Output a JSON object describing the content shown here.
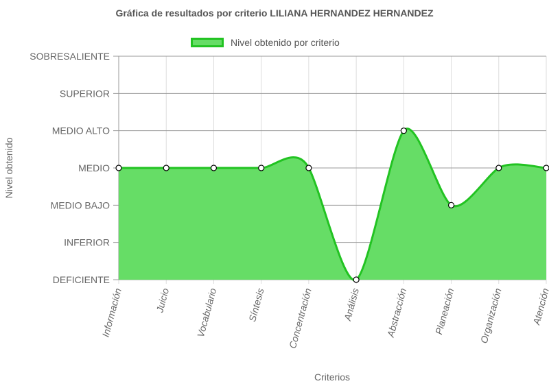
{
  "title": "Gráfica de resultados por criterio LILIANA HERNANDEZ HERNANDEZ",
  "legend": {
    "label": "Nivel obtenido por criterio",
    "position": "top-center"
  },
  "colors": {
    "line": "#22c322",
    "fill": "#66dd66",
    "grid": "#dddddd",
    "axis": "#999999",
    "text": "#666666"
  },
  "chart_data": {
    "type": "area",
    "title": "Gráfica de resultados por criterio LILIANA HERNANDEZ HERNANDEZ",
    "xlabel": "Criterios",
    "ylabel": "Nivel obtenido",
    "y_levels": [
      "DEFICIENTE",
      "INFERIOR",
      "MEDIO BAJO",
      "MEDIO",
      "MEDIO ALTO",
      "SUPERIOR",
      "SOBRESALIENTE"
    ],
    "ylim": [
      0,
      6
    ],
    "categories": [
      "Información",
      "Juicio",
      "Vocabulario",
      "Síntesis",
      "Concentración",
      "Análisis",
      "Abstracción",
      "Planeación",
      "Organización",
      "Atención"
    ],
    "series": [
      {
        "name": "Nivel obtenido por criterio",
        "values": [
          3,
          3,
          3,
          3,
          3,
          0,
          4,
          2,
          3,
          3
        ]
      }
    ],
    "grid": true,
    "smooth": true
  }
}
